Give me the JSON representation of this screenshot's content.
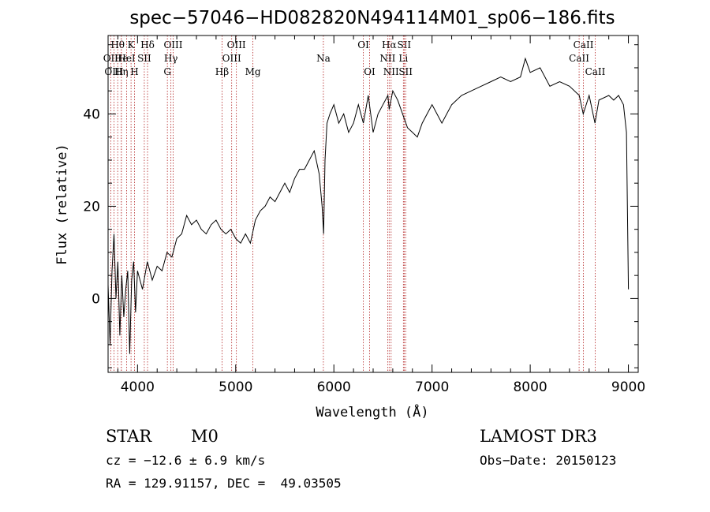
{
  "chart_data": {
    "type": "line",
    "title": "spec−57046−HD082820N494114M01_sp06−186.fits",
    "xlabel": "Wavelength (Å)",
    "ylabel": "Flux (relative)",
    "xlim": [
      3700,
      9100
    ],
    "ylim": [
      -16,
      57
    ],
    "xticks": [
      4000,
      5000,
      6000,
      7000,
      8000,
      9000
    ],
    "yticks": [
      0,
      20,
      40
    ],
    "series": [
      {
        "x": [
          3700,
          3720,
          3740,
          3760,
          3780,
          3800,
          3820,
          3840,
          3860,
          3880,
          3900,
          3920,
          3940,
          3960,
          3980,
          4000,
          4050,
          4100,
          4150,
          4200,
          4250,
          4300,
          4350,
          4400,
          4450,
          4500,
          4550,
          4600,
          4650,
          4700,
          4750,
          4800,
          4850,
          4900,
          4950,
          5000,
          5050,
          5100,
          5150,
          5200,
          5250,
          5300,
          5350,
          5400,
          5450,
          5500,
          5550,
          5600,
          5650,
          5700,
          5750,
          5800,
          5850,
          5880,
          5895,
          5910,
          5930,
          5960,
          6000,
          6050,
          6100,
          6150,
          6200,
          6250,
          6300,
          6350,
          6400,
          6450,
          6500,
          6550,
          6563,
          6600,
          6650,
          6700,
          6750,
          6800,
          6850,
          6900,
          6950,
          7000,
          7050,
          7100,
          7150,
          7200,
          7300,
          7400,
          7500,
          7600,
          7700,
          7800,
          7900,
          7950,
          8000,
          8100,
          8200,
          8300,
          8400,
          8500,
          8540,
          8600,
          8660,
          8700,
          8800,
          8850,
          8900,
          8950,
          8980,
          9000
        ],
        "y": [
          3,
          -10,
          6,
          14,
          0,
          8,
          -8,
          5,
          -4,
          2,
          6,
          -12,
          4,
          8,
          -3,
          6,
          2,
          8,
          4,
          7,
          6,
          10,
          9,
          13,
          14,
          18,
          16,
          17,
          15,
          14,
          16,
          17,
          15,
          14,
          15,
          13,
          12,
          14,
          12,
          17,
          19,
          20,
          22,
          21,
          23,
          25,
          23,
          26,
          28,
          28,
          30,
          32,
          27,
          20,
          14,
          30,
          38,
          40,
          42,
          38,
          40,
          36,
          38,
          42,
          38,
          44,
          36,
          40,
          42,
          44,
          41,
          45,
          43,
          40,
          37,
          36,
          35,
          38,
          40,
          42,
          40,
          38,
          40,
          42,
          44,
          45,
          46,
          47,
          48,
          47,
          48,
          52,
          49,
          50,
          46,
          47,
          46,
          44,
          40,
          44,
          38,
          43,
          44,
          43,
          44,
          42,
          36,
          2
        ],
        "color": "#000000"
      }
    ],
    "spectral_lines": [
      {
        "label": "Hθ",
        "x": 3798,
        "row": 0
      },
      {
        "label": "OII",
        "x": 3727,
        "row": 1
      },
      {
        "label": "OIII",
        "x": 3760,
        "row": 2
      },
      {
        "label": "He",
        "x": 3835,
        "row": 1
      },
      {
        "label": "Hη",
        "x": 3835,
        "row": 2
      },
      {
        "label": "K",
        "x": 3934,
        "row": 0
      },
      {
        "label": "HeI",
        "x": 3889,
        "row": 1
      },
      {
        "label": "SII",
        "x": 4069,
        "row": 1
      },
      {
        "label": "H",
        "x": 3969,
        "row": 2
      },
      {
        "label": "Hδ",
        "x": 4102,
        "row": 0
      },
      {
        "label": "OIII",
        "x": 4363,
        "row": 0
      },
      {
        "label": "Hγ",
        "x": 4340,
        "row": 1
      },
      {
        "label": "G",
        "x": 4304,
        "row": 2
      },
      {
        "label": "Hβ",
        "x": 4861,
        "row": 2
      },
      {
        "label": "OIII",
        "x": 5007,
        "row": 0
      },
      {
        "label": "OIII",
        "x": 4959,
        "row": 1
      },
      {
        "label": "Mg",
        "x": 5175,
        "row": 2
      },
      {
        "label": "Na",
        "x": 5893,
        "row": 1
      },
      {
        "label": "OI",
        "x": 6300,
        "row": 0
      },
      {
        "label": "OI",
        "x": 6364,
        "row": 2
      },
      {
        "label": "Hα",
        "x": 6563,
        "row": 0
      },
      {
        "label": "SII",
        "x": 6716,
        "row": 0
      },
      {
        "label": "NII",
        "x": 6548,
        "row": 1
      },
      {
        "label": "Li",
        "x": 6708,
        "row": 1
      },
      {
        "label": "NII",
        "x": 6583,
        "row": 2
      },
      {
        "label": "SII",
        "x": 6731,
        "row": 2
      },
      {
        "label": "CaII",
        "x": 8542,
        "row": 0
      },
      {
        "label": "CaII",
        "x": 8498,
        "row": 1
      },
      {
        "label": "CaII",
        "x": 8662,
        "row": 2
      }
    ]
  },
  "info": {
    "object_class": "STAR",
    "subclass": "M0",
    "survey": "LAMOST DR3",
    "cz": "cz = −12.6 ± 6.9 km/s",
    "obs_date": "Obs−Date: 20150123",
    "coords": "RA = 129.91157, DEC =  49.03505"
  }
}
